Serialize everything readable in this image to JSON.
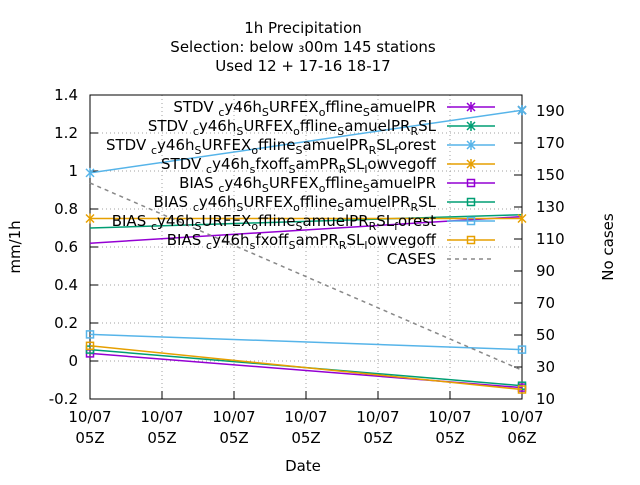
{
  "chart_data": {
    "type": "line",
    "title_lines": [
      "1h Precipitation",
      "Selection: below ₃00m    145 stations",
      "Used  12 + 17-16 18-17"
    ],
    "xlabel": "Date",
    "ylabel": "mm/1h",
    "y2label": "No cases",
    "ylim": [
      -0.2,
      1.4
    ],
    "y2lim": [
      10,
      200
    ],
    "yticks": [
      "-0.2",
      "0",
      "0.2",
      "0.4",
      "0.6",
      "0.8",
      "1",
      "1.2",
      "1.4"
    ],
    "y2ticks": [
      "10",
      "30",
      "50",
      "70",
      "90",
      "110",
      "130",
      "150",
      "170",
      "190"
    ],
    "xticks": [
      {
        "top": "10/07",
        "bottom": "05Z"
      },
      {
        "top": "10/07",
        "bottom": "05Z"
      },
      {
        "top": "10/07",
        "bottom": "05Z"
      },
      {
        "top": "10/07",
        "bottom": "05Z"
      },
      {
        "top": "10/07",
        "bottom": "05Z"
      },
      {
        "top": "10/07",
        "bottom": "05Z"
      },
      {
        "top": "10/07",
        "bottom": "06Z"
      }
    ],
    "grid": true,
    "legend_position": "top-right",
    "x": [
      0,
      1
    ],
    "series": [
      {
        "name": "STDV cy46h_SURFEX_offline_SamuelPR",
        "color": "#9400d3",
        "marker": "x",
        "dash": false,
        "axis": "y1",
        "values": [
          null,
          1.32
        ]
      },
      {
        "name": "STDV cy46h_SURFEX_offline_SamuelPR_RSL",
        "color": "#009e73",
        "marker": "x",
        "dash": false,
        "axis": "y1",
        "values": [
          null,
          1.32
        ]
      },
      {
        "name": "STDV cy46h_SURFEX_offline_SamuelPR_RSL_forest",
        "color": "#56b4e9",
        "marker": "x",
        "dash": false,
        "axis": "y1",
        "values": [
          0.99,
          1.32
        ]
      },
      {
        "name": "STDV cy46h_sfxoff_SamPR_RSL_lowvegoff",
        "color": "#e69f00",
        "marker": "x",
        "dash": false,
        "axis": "y1",
        "values": [
          0.75,
          0.75
        ]
      },
      {
        "name": "BIAS cy46h_SURFEX_offline_SamuelPR",
        "color": "#9400d3",
        "marker": "square",
        "dash": false,
        "axis": "y1",
        "values": [
          0.04,
          -0.14
        ]
      },
      {
        "name": "BIAS cy46h_SURFEX_offline_SamuelPR_RSL",
        "color": "#009e73",
        "marker": "square",
        "dash": false,
        "axis": "y1",
        "values": [
          0.06,
          -0.13
        ]
      },
      {
        "name": "BIAS cy46h_SURFEX_offline_SamuelPR_RSL_forest",
        "color": "#56b4e9",
        "marker": "square",
        "dash": false,
        "axis": "y1",
        "values": [
          0.14,
          0.06
        ]
      },
      {
        "name": "BIAS cy46h_sfxoff_SamPR_RSL_lowvegoff",
        "color": "#e69f00",
        "marker": "square",
        "dash": false,
        "axis": "y1",
        "values": [
          0.08,
          -0.15
        ]
      },
      {
        "name": "CASES",
        "color": "#888888",
        "marker": "none",
        "dash": true,
        "axis": "y2",
        "values": [
          145,
          28
        ]
      }
    ],
    "extra_lines": [
      {
        "color": "#9400d3",
        "values": [
          0.62,
          0.76
        ]
      },
      {
        "color": "#009e73",
        "values": [
          0.7,
          0.77
        ]
      }
    ]
  }
}
